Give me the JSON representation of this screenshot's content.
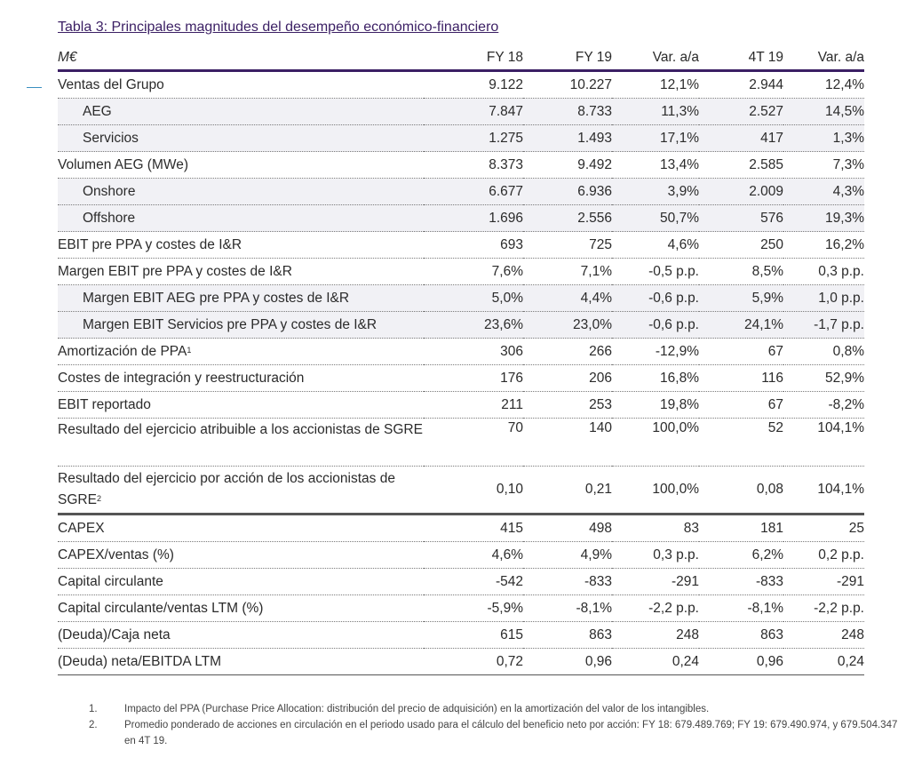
{
  "title": "Tabla 3: Principales magnitudes del desempeño económico-financiero",
  "columns": [
    "M€",
    "FY 18",
    "FY 19",
    "Var. a/a",
    "4T 19",
    "Var. a/a"
  ],
  "rows": [
    {
      "label": "Ventas del Grupo",
      "cells": [
        "9.122",
        "10.227",
        "12,1%",
        "2.944",
        "12,4%"
      ]
    },
    {
      "label": "AEG",
      "cells": [
        "7.847",
        "8.733",
        "11,3%",
        "2.527",
        "14,5%"
      ]
    },
    {
      "label": "Servicios",
      "cells": [
        "1.275",
        "1.493",
        "17,1%",
        "417",
        "1,3%"
      ]
    },
    {
      "label": "Volumen AEG (MWe)",
      "cells": [
        "8.373",
        "9.492",
        "13,4%",
        "2.585",
        "7,3%"
      ]
    },
    {
      "label": "Onshore",
      "cells": [
        "6.677",
        "6.936",
        "3,9%",
        "2.009",
        "4,3%"
      ]
    },
    {
      "label": "Offshore",
      "cells": [
        "1.696",
        "2.556",
        "50,7%",
        "576",
        "19,3%"
      ]
    },
    {
      "label": "EBIT pre PPA y costes de I&R",
      "cells": [
        "693",
        "725",
        "4,6%",
        "250",
        "16,2%"
      ]
    },
    {
      "label": "Margen EBIT pre PPA y costes de I&R",
      "cells": [
        "7,6%",
        "7,1%",
        "-0,5 p.p.",
        "8,5%",
        "0,3 p.p."
      ]
    },
    {
      "label": "Margen EBIT AEG pre PPA y costes de I&R",
      "cells": [
        "5,0%",
        "4,4%",
        "-0,6 p.p.",
        "5,9%",
        "1,0 p.p."
      ]
    },
    {
      "label": "Margen EBIT Servicios pre PPA y costes de I&R",
      "cells": [
        "23,6%",
        "23,0%",
        "-0,6 p.p.",
        "24,1%",
        "-1,7 p.p."
      ]
    },
    {
      "label": "Amortización de PPA",
      "sup": "1",
      "cells": [
        "306",
        "266",
        "-12,9%",
        "67",
        "0,8%"
      ]
    },
    {
      "label": "Costes de integración y reestructuración",
      "cells": [
        "176",
        "206",
        "16,8%",
        "116",
        "52,9%"
      ]
    },
    {
      "label": "EBIT reportado",
      "cells": [
        "211",
        "253",
        "19,8%",
        "67",
        "-8,2%"
      ]
    },
    {
      "label": "Resultado del ejercicio atribuible a los accionistas de SGRE",
      "cells": [
        "70",
        "140",
        "100,0%",
        "52",
        "104,1%"
      ]
    },
    {
      "label": "Resultado del ejercicio por acción de los accionistas de SGRE",
      "sup": "2",
      "cells": [
        "0,10",
        "0,21",
        "100,0%",
        "0,08",
        "104,1%"
      ]
    },
    {
      "label": "CAPEX",
      "cells": [
        "415",
        "498",
        "83",
        "181",
        "25"
      ]
    },
    {
      "label": "CAPEX/ventas (%)",
      "cells": [
        "4,6%",
        "4,9%",
        "0,3 p.p.",
        "6,2%",
        "0,2 p.p."
      ]
    },
    {
      "label": "Capital circulante",
      "cells": [
        "-542",
        "-833",
        "-291",
        "-833",
        "-291"
      ]
    },
    {
      "label": "Capital circulante/ventas LTM (%)",
      "cells": [
        "-5,9%",
        "-8,1%",
        "-2,2 p.p.",
        "-8,1%",
        "-2,2 p.p."
      ]
    },
    {
      "label": "(Deuda)/Caja neta",
      "cells": [
        "615",
        "863",
        "248",
        "863",
        "248"
      ]
    },
    {
      "label": "(Deuda) neta/EBITDA LTM",
      "cells": [
        "0,72",
        "0,96",
        "0,24",
        "0,96",
        "0,24"
      ]
    }
  ],
  "notes": [
    {
      "num": "1.",
      "text": "Impacto del PPA (Purchase Price Allocation: distribución del precio de adquisición) en la amortización del valor de los intangibles."
    },
    {
      "num": "2.",
      "text": "Promedio ponderado de acciones en circulación en el periodo usado para el cálculo del beneficio neto por acción: FY 18: 679.489.769; FY 19: 679.490.974, y 679.504.347 en 4T 19."
    }
  ]
}
